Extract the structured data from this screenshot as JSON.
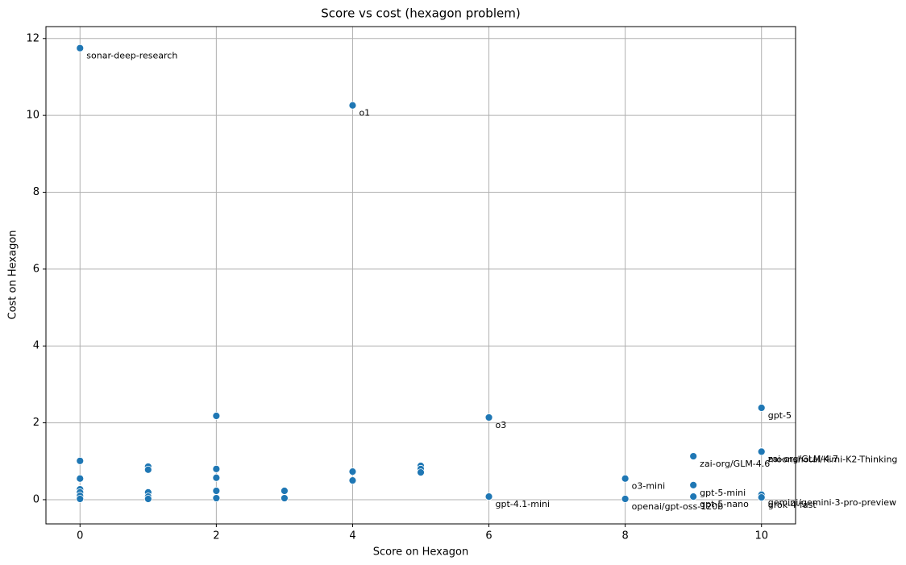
{
  "chart_data": {
    "type": "scatter",
    "title": "Score vs cost (hexagon problem)",
    "x_label": "Score on Hexagon",
    "y_label": "Cost on Hexagon",
    "color": "#1f77b4",
    "grid": true,
    "xlim": [
      -0.5,
      10.5
    ],
    "ylim": [
      -0.63,
      12.31
    ],
    "xticks": [
      0,
      2,
      4,
      6,
      8,
      10
    ],
    "yticks": [
      0,
      2,
      4,
      6,
      8,
      10,
      12
    ],
    "x": [
      0,
      4,
      10,
      2,
      6,
      10,
      10,
      9,
      0,
      1,
      1,
      2,
      4,
      5,
      5,
      5,
      8,
      0,
      2,
      4,
      9,
      0,
      0,
      0,
      0,
      1,
      1,
      1,
      2,
      2,
      3,
      3,
      6,
      8,
      9,
      10,
      10
    ],
    "y": [
      11.75,
      10.26,
      2.39,
      2.18,
      2.14,
      1.26,
      1.25,
      1.13,
      1.01,
      0.86,
      0.78,
      0.8,
      0.73,
      0.88,
      0.8,
      0.71,
      0.55,
      0.55,
      0.57,
      0.5,
      0.38,
      0.27,
      0.19,
      0.1,
      0.02,
      0.19,
      0.08,
      0.02,
      0.23,
      0.04,
      0.23,
      0.04,
      0.08,
      0.02,
      0.08,
      0.13,
      0.06
    ],
    "labels": [
      "sonar-deep-research",
      "o1",
      "gpt-5",
      null,
      "o3",
      "zai-org/GLM-4.7",
      "moonshotai/Kimi-K2-Thinking",
      "zai-org/GLM-4.6",
      null,
      null,
      null,
      null,
      null,
      null,
      null,
      null,
      "o3-mini",
      null,
      null,
      null,
      "gpt-5-mini",
      null,
      null,
      null,
      null,
      null,
      null,
      null,
      null,
      null,
      null,
      null,
      "gpt-4.1-mini",
      "openai/gpt-oss-120b",
      "gpt-5-nano",
      "gemini/gemini-3-pro-preview",
      "grok-4-fast"
    ]
  }
}
